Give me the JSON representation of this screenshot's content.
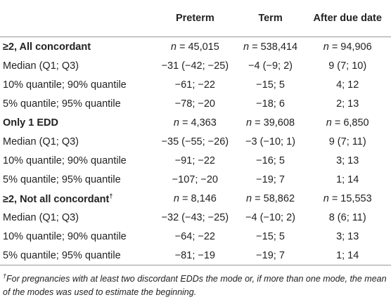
{
  "table": {
    "header": [
      "Preterm",
      "Term",
      "After due date"
    ],
    "rows": [
      {
        "label": "≥2, All concordant",
        "group": true,
        "cells": [
          {
            "symbol": "n",
            "value": "= 45,015"
          },
          {
            "symbol": "n",
            "value": "= 538,414"
          },
          {
            "symbol": "n",
            "value": "= 94,906"
          }
        ]
      },
      {
        "label": "Median (Q1; Q3)",
        "cells": [
          "−31 (−42; −25)",
          "−4 (−9; 2)",
          "9 (7; 10)"
        ]
      },
      {
        "label": "10% quantile; 90% quantile",
        "cells": [
          "−61; −22",
          "−15; 5",
          "4; 12"
        ]
      },
      {
        "label": "5% quantile; 95% quantile",
        "cells": [
          "−78; −20",
          "−18; 6",
          "2; 13"
        ]
      },
      {
        "label": "Only 1 EDD",
        "group": true,
        "cells": [
          {
            "symbol": "n",
            "value": "= 4,363"
          },
          {
            "symbol": "n",
            "value": "= 39,608"
          },
          {
            "symbol": "n",
            "value": "= 6,850"
          }
        ]
      },
      {
        "label": "Median (Q1; Q3)",
        "cells": [
          "−35 (−55; −26)",
          "−3 (−10; 1)",
          "9 (7; 11)"
        ]
      },
      {
        "label": "10% quantile; 90% quantile",
        "cells": [
          "−91; −22",
          "−16; 5",
          "3; 13"
        ]
      },
      {
        "label": "5% quantile; 95% quantile",
        "cells": [
          "−107; −20",
          "−19; 7",
          "1; 14"
        ]
      },
      {
        "label": "≥2, Not all concordant",
        "marker": "†",
        "group": true,
        "cells": [
          {
            "symbol": "n",
            "value": "= 8,146"
          },
          {
            "symbol": "n",
            "value": "= 58,862"
          },
          {
            "symbol": "n",
            "value": "= 15,553"
          }
        ]
      },
      {
        "label": "Median (Q1; Q3)",
        "cells": [
          "−32 (−43; −25)",
          "−4 (−10; 2)",
          "8 (6; 11)"
        ]
      },
      {
        "label": "10% quantile; 90% quantile",
        "cells": [
          "−64; −22",
          "−15; 5",
          "3; 13"
        ]
      },
      {
        "label": "5% quantile; 95% quantile",
        "cells": [
          "−81; −19",
          "−19; 7",
          "1; 14"
        ]
      }
    ]
  },
  "footnote": {
    "marker": "†",
    "text": "For pregnancies with at least two discordant EDDs the mode or, if more than one mode, the mean of the modes was used to estimate the beginning."
  }
}
